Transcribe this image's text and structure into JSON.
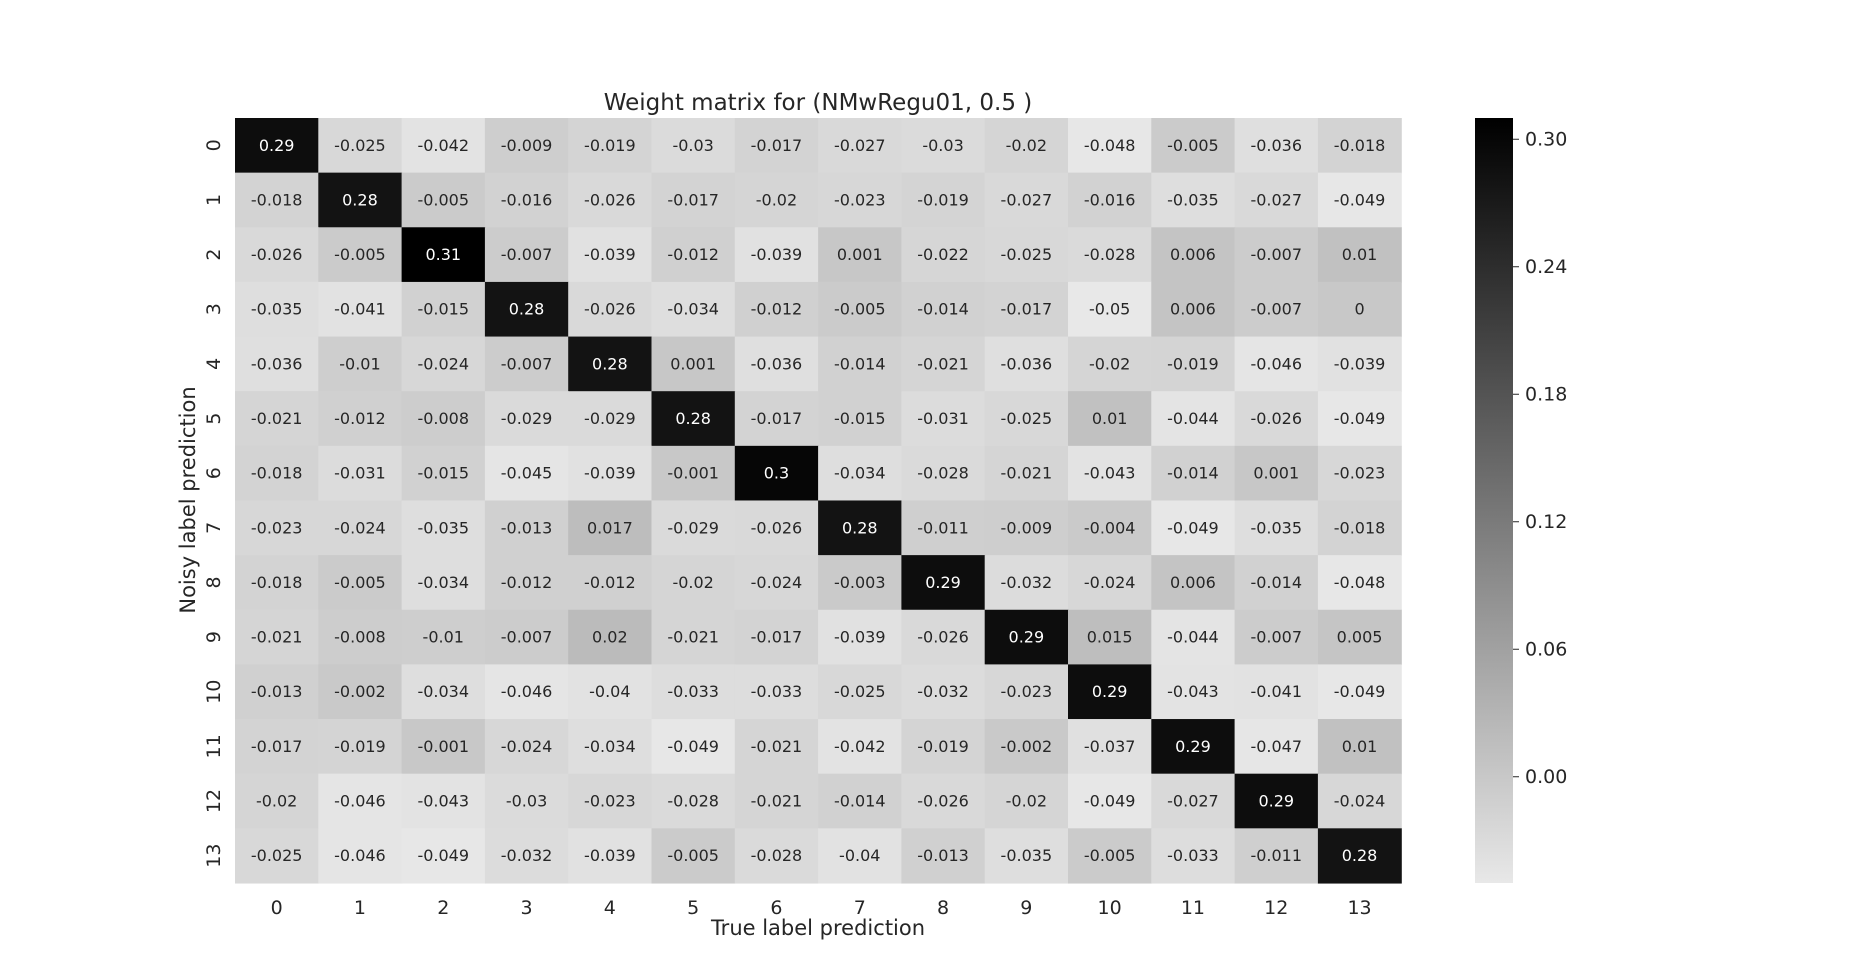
{
  "chart_data": {
    "type": "heatmap",
    "title": "Weight matrix for (NMwRegu01, 0.5 )",
    "xlabel": "True label prediction",
    "ylabel": "Noisy label prediction",
    "x_categories": [
      "0",
      "1",
      "2",
      "3",
      "4",
      "5",
      "6",
      "7",
      "8",
      "9",
      "10",
      "11",
      "12",
      "13"
    ],
    "y_categories": [
      "0",
      "1",
      "2",
      "3",
      "4",
      "5",
      "6",
      "7",
      "8",
      "9",
      "10",
      "11",
      "12",
      "13"
    ],
    "values": [
      [
        0.29,
        -0.025,
        -0.042,
        -0.009,
        -0.019,
        -0.03,
        -0.017,
        -0.027,
        -0.03,
        -0.02,
        -0.048,
        -0.005,
        -0.036,
        -0.018
      ],
      [
        -0.018,
        0.28,
        -0.005,
        -0.016,
        -0.026,
        -0.017,
        -0.02,
        -0.023,
        -0.019,
        -0.027,
        -0.016,
        -0.035,
        -0.027,
        -0.049
      ],
      [
        -0.026,
        -0.005,
        0.31,
        -0.007,
        -0.039,
        -0.012,
        -0.039,
        0.001,
        -0.022,
        -0.025,
        -0.028,
        0.006,
        -0.007,
        0.01
      ],
      [
        -0.035,
        -0.041,
        -0.015,
        0.28,
        -0.026,
        -0.034,
        -0.012,
        -0.005,
        -0.014,
        -0.017,
        -0.05,
        0.006,
        -0.007,
        0
      ],
      [
        -0.036,
        -0.01,
        -0.024,
        -0.007,
        0.28,
        0.001,
        -0.036,
        -0.014,
        -0.021,
        -0.036,
        -0.02,
        -0.019,
        -0.046,
        -0.039
      ],
      [
        -0.021,
        -0.012,
        -0.008,
        -0.029,
        -0.029,
        0.28,
        -0.017,
        -0.015,
        -0.031,
        -0.025,
        0.01,
        -0.044,
        -0.026,
        -0.049
      ],
      [
        -0.018,
        -0.031,
        -0.015,
        -0.045,
        -0.039,
        -0.001,
        0.3,
        -0.034,
        -0.028,
        -0.021,
        -0.043,
        -0.014,
        0.001,
        -0.023
      ],
      [
        -0.023,
        -0.024,
        -0.035,
        -0.013,
        0.017,
        -0.029,
        -0.026,
        0.28,
        -0.011,
        -0.009,
        -0.004,
        -0.049,
        -0.035,
        -0.018
      ],
      [
        -0.018,
        -0.005,
        -0.034,
        -0.012,
        -0.012,
        -0.02,
        -0.024,
        -0.003,
        0.29,
        -0.032,
        -0.024,
        0.006,
        -0.014,
        -0.048
      ],
      [
        -0.021,
        -0.008,
        -0.01,
        -0.007,
        0.02,
        -0.021,
        -0.017,
        -0.039,
        -0.026,
        0.29,
        0.015,
        -0.044,
        -0.007,
        0.005
      ],
      [
        -0.013,
        -0.002,
        -0.034,
        -0.046,
        -0.04,
        -0.033,
        -0.033,
        -0.025,
        -0.032,
        -0.023,
        0.29,
        -0.043,
        -0.041,
        -0.049
      ],
      [
        -0.017,
        -0.019,
        -0.001,
        -0.024,
        -0.034,
        -0.049,
        -0.021,
        -0.042,
        -0.019,
        -0.002,
        -0.037,
        0.29,
        -0.047,
        0.01
      ],
      [
        -0.02,
        -0.046,
        -0.043,
        -0.03,
        -0.023,
        -0.028,
        -0.021,
        -0.014,
        -0.026,
        -0.02,
        -0.049,
        -0.027,
        0.29,
        -0.024
      ],
      [
        -0.025,
        -0.046,
        -0.049,
        -0.032,
        -0.039,
        -0.005,
        -0.028,
        -0.04,
        -0.013,
        -0.035,
        -0.005,
        -0.033,
        -0.011,
        0.28
      ]
    ],
    "colorbar": {
      "min": -0.05,
      "max": 0.31,
      "ticks": [
        0.3,
        0.24,
        0.18,
        0.12,
        0.06,
        0.0
      ],
      "tick_labels": [
        "0.30",
        "0.24",
        "0.18",
        "0.12",
        "0.06",
        "0.00"
      ]
    },
    "colormap": {
      "low": "#e8e8e8",
      "high": "#000000"
    },
    "grid": false
  }
}
